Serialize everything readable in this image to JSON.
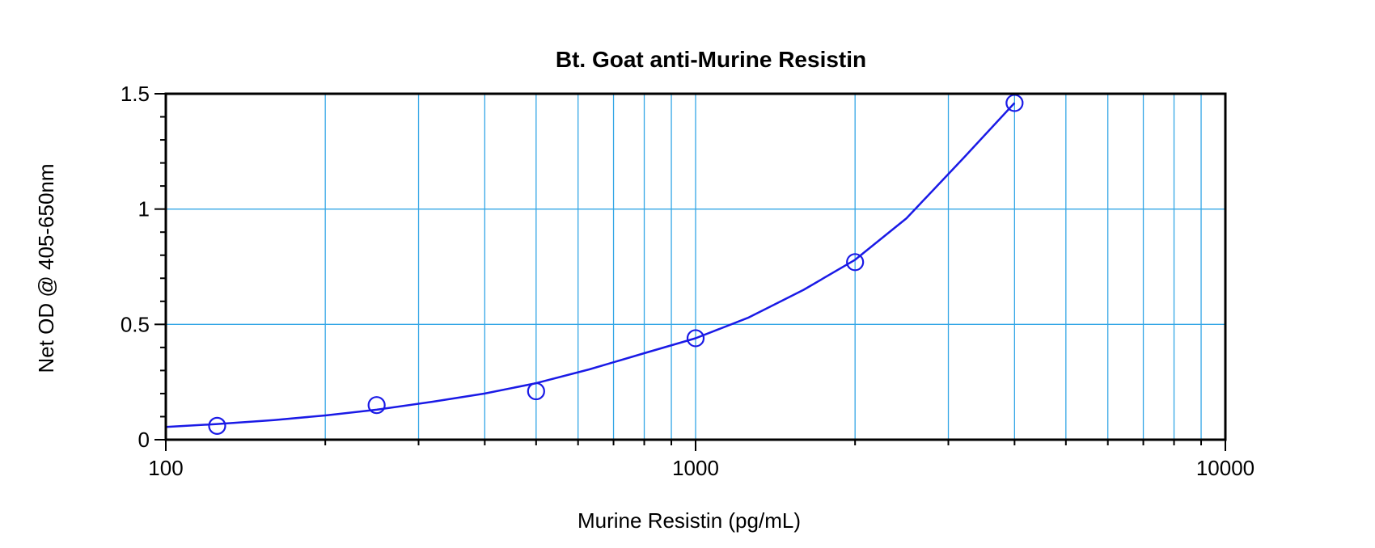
{
  "chart_data": {
    "type": "scatter",
    "title": "Bt. Goat anti-Murine Resistin",
    "xlabel": "Murine Resistin (pg/mL)",
    "ylabel": "Net OD @ 405-650nm",
    "x_scale": "log",
    "xlim": [
      100,
      10000
    ],
    "ylim": [
      0,
      1.5
    ],
    "x_ticks": [
      100,
      1000,
      10000
    ],
    "x_tick_labels": [
      "100",
      "1000",
      "10000"
    ],
    "y_ticks": [
      0,
      0.5,
      1,
      1.5
    ],
    "y_tick_labels": [
      "0",
      "0.5",
      "1",
      "1.5"
    ],
    "grid": true,
    "series": [
      {
        "marker": "circle",
        "color": "#1a1ae6",
        "x": [
          125,
          250,
          500,
          1000,
          2000,
          4000
        ],
        "y": [
          0.06,
          0.15,
          0.21,
          0.44,
          0.77,
          1.46
        ]
      }
    ],
    "fit_curve": {
      "color": "#1a1ae6",
      "x": [
        100,
        125,
        160,
        200,
        250,
        320,
        400,
        500,
        630,
        800,
        1000,
        1260,
        1600,
        2000,
        2500,
        3200,
        4000
      ],
      "y": [
        0.055,
        0.068,
        0.085,
        0.105,
        0.13,
        0.165,
        0.2,
        0.245,
        0.305,
        0.375,
        0.44,
        0.53,
        0.65,
        0.78,
        0.96,
        1.22,
        1.46
      ]
    },
    "colors": {
      "grid": "#33a6e6",
      "frame": "#000000",
      "series": "#1a1ae6"
    }
  }
}
